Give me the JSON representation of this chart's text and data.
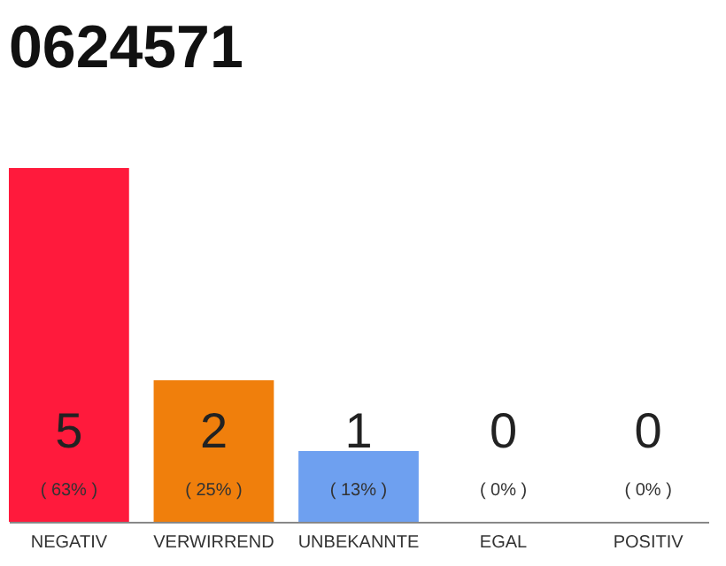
{
  "chart_data": {
    "type": "bar",
    "title": "0624571",
    "categories": [
      "NEGATIV",
      "VERWIRREND",
      "UNBEKANNTE",
      "EGAL",
      "POSITIV"
    ],
    "values": [
      5,
      2,
      1,
      0,
      0
    ],
    "colors": [
      "#ff1a3c",
      "#f07f0c",
      "#6ea0f0",
      "#6ea0f0",
      "#6ea0f0"
    ],
    "ylim": [
      0,
      5
    ],
    "value_labels": [
      "5",
      "2",
      "1",
      "0",
      "0"
    ],
    "annotations": [
      "( 63% )",
      "( 25% )",
      "( 13% )",
      "( 0% )",
      "( 0% )"
    ]
  }
}
